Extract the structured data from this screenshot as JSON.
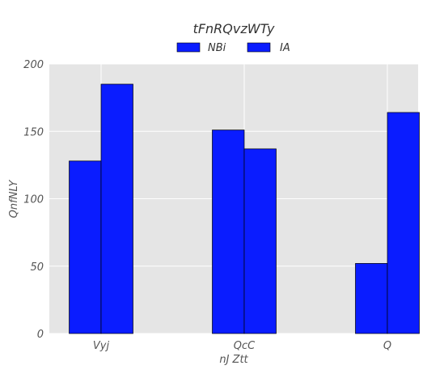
{
  "chart_data": {
    "type": "bar",
    "title": "tFnRQvzWTy",
    "xlabel": "nJ Ztt",
    "ylabel": "QnfNLY",
    "categories": [
      "Vyj",
      "QcC",
      "Q"
    ],
    "series": [
      {
        "name": "NBi",
        "values": [
          128,
          151,
          52
        ],
        "color": "#0a1cff"
      },
      {
        "name": "IA",
        "values": [
          185,
          137,
          164
        ],
        "color": "#0a1cff"
      }
    ],
    "ylim": [
      0,
      200
    ],
    "yticks": [
      0,
      50,
      100,
      150,
      200
    ],
    "grid": true,
    "legend": "top-center",
    "colors": {
      "background": "#e5e5e5",
      "grid": "#ffffff",
      "bar_edge": "#000000"
    }
  }
}
